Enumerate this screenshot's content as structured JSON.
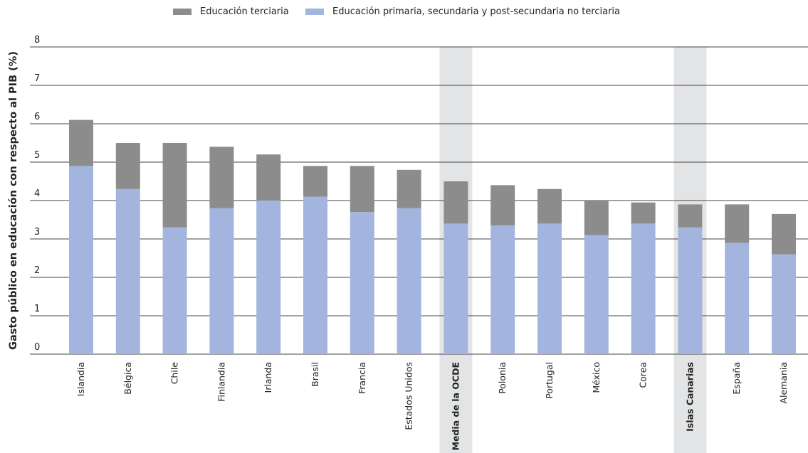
{
  "chart_data": {
    "type": "bar",
    "stacked": true,
    "title": "",
    "xlabel": "",
    "ylabel": "Gasto público en educación con respecto al PIB (%)",
    "ylim": [
      0,
      8
    ],
    "yticks": [
      0,
      1,
      2,
      3,
      4,
      5,
      6,
      7,
      8
    ],
    "grid": true,
    "legend_position": "top",
    "categories": [
      "Islandia",
      "Bélgica",
      "Chile",
      "Finlandia",
      "Irlanda",
      "Brasil",
      "Francia",
      "Estados Unidos",
      "Media de la OCDE",
      "Polonia",
      "Portugal",
      "México",
      "Corea",
      "Islas Canarias",
      "España",
      "Alemania"
    ],
    "highlighted": [
      "Media de la OCDE",
      "Islas Canarias"
    ],
    "series": [
      {
        "name": "Educación primaria, secundaria y post-secundaria no terciaria",
        "color": "#a3b5de",
        "values": [
          4.9,
          4.3,
          3.3,
          3.8,
          4.0,
          4.1,
          3.7,
          3.8,
          3.4,
          3.35,
          3.4,
          3.1,
          3.4,
          3.3,
          2.9,
          2.6
        ]
      },
      {
        "name": "Educación terciaria",
        "color": "#8c8c8c",
        "values": [
          1.2,
          1.2,
          2.2,
          1.6,
          1.2,
          0.8,
          1.2,
          1.0,
          1.1,
          1.05,
          0.9,
          0.9,
          0.55,
          0.6,
          1.0,
          1.05
        ]
      }
    ],
    "legend": [
      {
        "label": "Educación terciaria",
        "color": "#8c8c8c"
      },
      {
        "label": "Educación primaria, secundaria y post-secundaria no terciaria",
        "color": "#a3b5de"
      }
    ]
  }
}
